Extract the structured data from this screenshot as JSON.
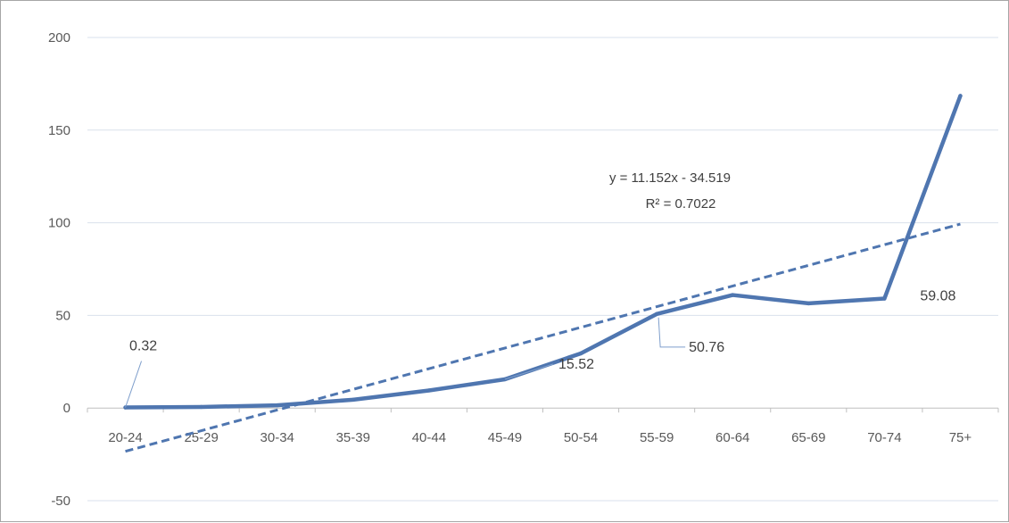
{
  "chart_data": {
    "type": "line",
    "categories": [
      "20-24",
      "25-29",
      "30-34",
      "35-39",
      "40-44",
      "45-49",
      "50-54",
      "55-59",
      "60-64",
      "65-69",
      "70-74",
      "75+"
    ],
    "series": [
      {
        "values": [
          0.32,
          0.6,
          1.5,
          4.5,
          9.5,
          15.52,
          29.5,
          50.76,
          61.0,
          56.5,
          59.08,
          168.5
        ],
        "color": "#4f76b0"
      }
    ],
    "trendline": {
      "type": "linear",
      "slope": 11.152,
      "intercept": -34.519,
      "equation": "y = 11.152x - 34.519",
      "r_squared": "R² = 0.7022",
      "style": "dashed",
      "color": "#4f76b0"
    },
    "data_labels": [
      {
        "index": 0,
        "text": "0.32"
      },
      {
        "index": 5,
        "text": "15.52"
      },
      {
        "index": 7,
        "text": "50.76"
      },
      {
        "index": 10,
        "text": "59.08"
      }
    ],
    "y_ticks": [
      "200",
      "150",
      "100",
      "50",
      "0",
      "-50"
    ],
    "y_tick_values": [
      200,
      150,
      100,
      50,
      0,
      -50
    ],
    "ylim": [
      -50,
      200
    ],
    "grid": true,
    "legend": "none",
    "title": "",
    "xlabel": "",
    "ylabel": ""
  }
}
